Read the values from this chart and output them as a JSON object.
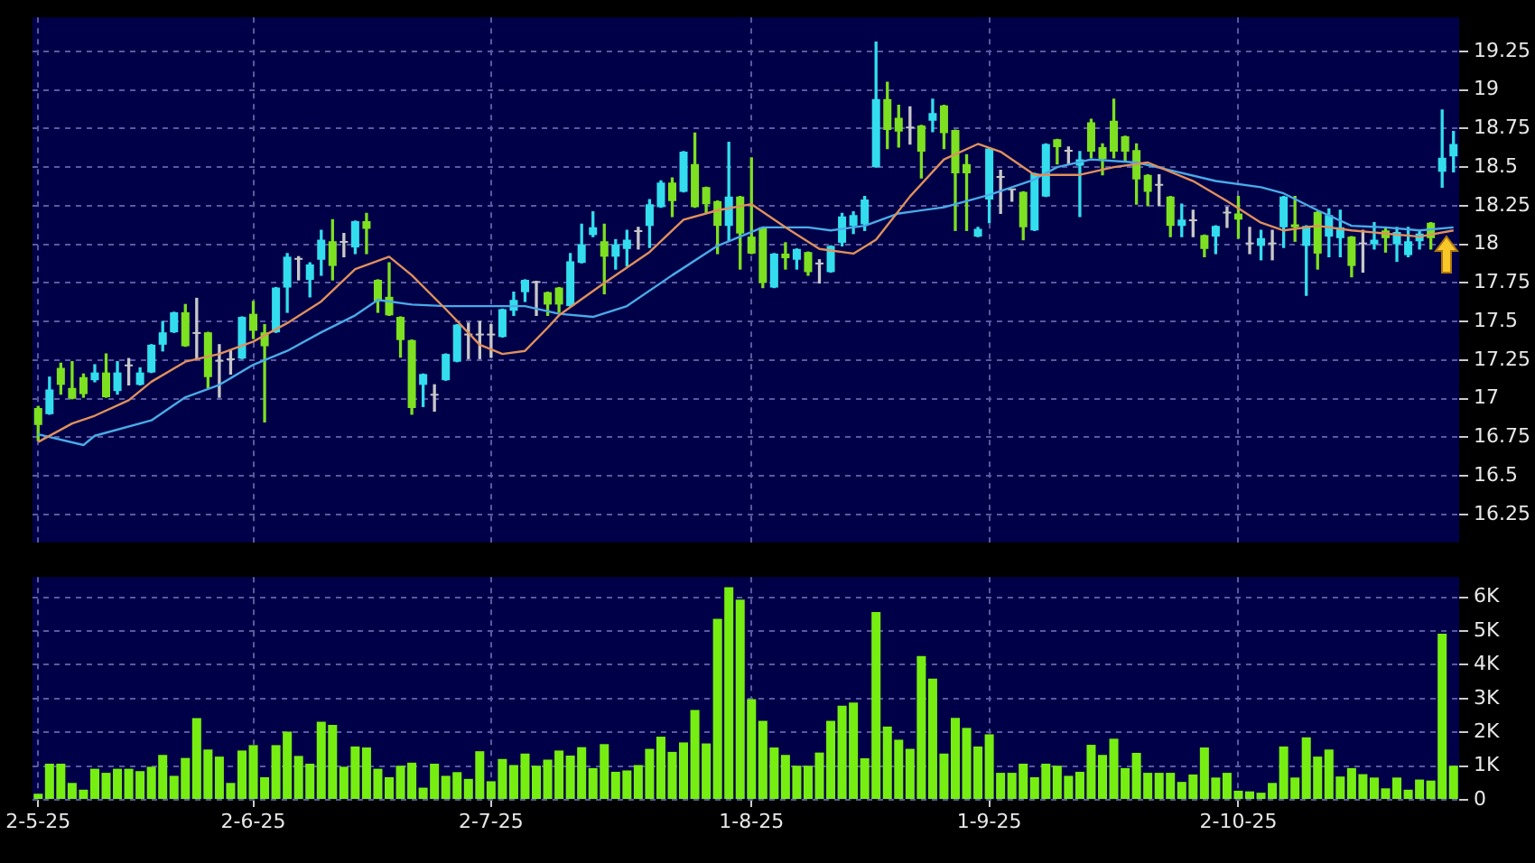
{
  "chart_data": [
    {
      "type": "candlestick",
      "categories": [
        null,
        null,
        null,
        null,
        null,
        null,
        null,
        null,
        null,
        null,
        null,
        null,
        null,
        null,
        null,
        null,
        null,
        null,
        null,
        null,
        null,
        null,
        null,
        null,
        null,
        null,
        null,
        null,
        null,
        null,
        null,
        null,
        null,
        null,
        null,
        null,
        null,
        null,
        null,
        null,
        null,
        null,
        null,
        null,
        null,
        null,
        null,
        null,
        null,
        null,
        null,
        null,
        null,
        null,
        null,
        null,
        null,
        null,
        null,
        null,
        null,
        null,
        null,
        null,
        null,
        null,
        null,
        null,
        null,
        null,
        null,
        null,
        null,
        null,
        null,
        null,
        null,
        null,
        null,
        null,
        null,
        null,
        null,
        null,
        null,
        null,
        null,
        null,
        null,
        null,
        null,
        null,
        null,
        null,
        null,
        null,
        null,
        null,
        null,
        null,
        null,
        null,
        null,
        null,
        null,
        null,
        null,
        null,
        null,
        null,
        null,
        null,
        null,
        null,
        null,
        null,
        null,
        null,
        null,
        null,
        null,
        null,
        null,
        null,
        null,
        null
      ],
      "ohlc": [
        [
          16.94,
          16.95,
          16.73,
          16.83
        ],
        [
          16.9,
          17.14,
          16.9,
          17.06
        ],
        [
          17.2,
          17.23,
          17.03,
          17.09
        ],
        [
          17.07,
          17.24,
          17.0,
          17.0
        ],
        [
          17.14,
          17.16,
          17.01,
          17.03
        ],
        [
          17.12,
          17.22,
          17.11,
          17.17
        ],
        [
          17.17,
          17.29,
          17.01,
          17.01
        ],
        [
          17.05,
          17.24,
          17.03,
          17.17
        ],
        [
          17.21,
          17.26,
          17.09,
          17.21
        ],
        [
          17.09,
          17.2,
          17.09,
          17.17
        ],
        [
          17.17,
          17.35,
          17.17,
          17.35
        ],
        [
          17.35,
          17.5,
          17.31,
          17.43
        ],
        [
          17.43,
          17.56,
          17.43,
          17.56
        ],
        [
          17.56,
          17.61,
          17.34,
          17.34
        ],
        [
          17.42,
          17.65,
          17.26,
          17.42
        ],
        [
          17.43,
          17.43,
          17.07,
          17.14
        ],
        [
          17.24,
          17.35,
          17.01,
          17.24
        ],
        [
          17.25,
          17.31,
          17.16,
          17.25
        ],
        [
          17.26,
          17.53,
          17.26,
          17.53
        ],
        [
          17.55,
          17.63,
          17.39,
          17.44
        ],
        [
          17.43,
          17.48,
          16.85,
          17.34
        ],
        [
          17.43,
          17.72,
          17.43,
          17.72
        ],
        [
          17.72,
          17.94,
          17.56,
          17.92
        ],
        [
          17.9,
          17.92,
          17.77,
          17.9
        ],
        [
          17.77,
          17.88,
          17.66,
          17.87
        ],
        [
          17.9,
          18.09,
          17.8,
          18.03
        ],
        [
          18.02,
          18.16,
          17.77,
          17.86
        ],
        [
          18.01,
          18.07,
          17.92,
          18.01
        ],
        [
          17.98,
          18.15,
          17.94,
          18.15
        ],
        [
          18.15,
          18.2,
          17.94,
          18.1
        ],
        [
          17.77,
          17.77,
          17.56,
          17.63
        ],
        [
          17.66,
          17.88,
          17.54,
          17.54
        ],
        [
          17.53,
          17.53,
          17.27,
          17.38
        ],
        [
          17.38,
          17.38,
          16.9,
          16.94
        ],
        [
          17.09,
          17.16,
          16.95,
          17.16
        ],
        [
          17.02,
          17.09,
          16.92,
          17.02
        ],
        [
          17.12,
          17.29,
          17.12,
          17.29
        ],
        [
          17.24,
          17.48,
          17.24,
          17.48
        ],
        [
          17.41,
          17.49,
          17.26,
          17.41
        ],
        [
          17.41,
          17.5,
          17.26,
          17.41
        ],
        [
          17.41,
          17.48,
          17.27,
          17.41
        ],
        [
          17.4,
          17.58,
          17.4,
          17.58
        ],
        [
          17.57,
          17.69,
          17.54,
          17.64
        ],
        [
          17.69,
          17.77,
          17.63,
          17.77
        ],
        [
          17.75,
          17.76,
          17.54,
          17.75
        ],
        [
          17.69,
          17.69,
          17.54,
          17.61
        ],
        [
          17.72,
          17.72,
          17.56,
          17.61
        ],
        [
          17.6,
          17.94,
          17.6,
          17.89
        ],
        [
          17.88,
          18.13,
          17.88,
          18.0
        ],
        [
          18.06,
          18.21,
          18.05,
          18.11
        ],
        [
          18.02,
          18.13,
          17.68,
          17.92
        ],
        [
          17.92,
          18.03,
          17.84,
          18.0
        ],
        [
          17.97,
          18.09,
          17.86,
          18.03
        ],
        [
          18.08,
          18.11,
          17.97,
          18.08
        ],
        [
          18.12,
          18.29,
          17.98,
          18.26
        ],
        [
          18.24,
          18.41,
          18.24,
          18.4
        ],
        [
          18.4,
          18.43,
          18.18,
          18.28
        ],
        [
          18.34,
          18.6,
          18.34,
          18.6
        ],
        [
          18.52,
          18.72,
          18.24,
          18.24
        ],
        [
          18.37,
          18.37,
          18.2,
          18.26
        ],
        [
          18.28,
          18.28,
          17.94,
          18.12
        ],
        [
          18.12,
          18.66,
          18.02,
          18.31
        ],
        [
          18.31,
          18.31,
          17.84,
          18.07
        ],
        [
          18.05,
          18.56,
          17.94,
          17.94
        ],
        [
          18.11,
          18.11,
          17.72,
          17.75
        ],
        [
          17.72,
          17.94,
          17.72,
          17.94
        ],
        [
          17.94,
          18.01,
          17.84,
          17.91
        ],
        [
          17.9,
          17.97,
          17.84,
          17.97
        ],
        [
          17.95,
          17.95,
          17.8,
          17.82
        ],
        [
          17.87,
          17.9,
          17.75,
          17.87
        ],
        [
          17.82,
          17.99,
          17.82,
          17.99
        ],
        [
          18.01,
          18.2,
          17.99,
          18.18
        ],
        [
          18.12,
          18.21,
          18.07,
          18.19
        ],
        [
          18.13,
          18.31,
          18.09,
          18.29
        ],
        [
          18.5,
          19.31,
          18.5,
          18.94
        ],
        [
          18.94,
          19.05,
          18.62,
          18.74
        ],
        [
          18.82,
          18.9,
          18.63,
          18.73
        ],
        [
          18.75,
          18.89,
          18.65,
          18.75
        ],
        [
          18.77,
          18.77,
          18.43,
          18.6
        ],
        [
          18.8,
          18.94,
          18.73,
          18.85
        ],
        [
          18.9,
          18.9,
          18.62,
          18.72
        ],
        [
          18.74,
          18.74,
          18.09,
          18.46
        ],
        [
          18.52,
          18.58,
          18.09,
          18.46
        ],
        [
          18.05,
          18.11,
          18.05,
          18.1
        ],
        [
          18.29,
          18.62,
          18.14,
          18.62
        ],
        [
          18.43,
          18.48,
          18.2,
          18.43
        ],
        [
          18.35,
          18.35,
          18.28,
          18.35
        ],
        [
          18.34,
          18.34,
          18.03,
          18.11
        ],
        [
          18.09,
          18.46,
          18.09,
          18.46
        ],
        [
          18.31,
          18.65,
          18.31,
          18.65
        ],
        [
          18.68,
          18.68,
          18.52,
          18.63
        ],
        [
          18.6,
          18.63,
          18.52,
          18.6
        ],
        [
          18.51,
          18.6,
          18.18,
          18.55
        ],
        [
          18.79,
          18.81,
          18.56,
          18.6
        ],
        [
          18.63,
          18.65,
          18.45,
          18.55
        ],
        [
          18.8,
          18.94,
          18.56,
          18.6
        ],
        [
          18.7,
          18.7,
          18.54,
          18.6
        ],
        [
          18.61,
          18.65,
          18.26,
          18.42
        ],
        [
          18.45,
          18.45,
          18.25,
          18.34
        ],
        [
          18.38,
          18.45,
          18.25,
          18.38
        ],
        [
          18.31,
          18.31,
          18.05,
          18.12
        ],
        [
          18.12,
          18.26,
          18.05,
          18.16
        ],
        [
          18.15,
          18.22,
          18.05,
          18.15
        ],
        [
          18.06,
          18.06,
          17.92,
          17.97
        ],
        [
          18.05,
          18.12,
          17.94,
          18.12
        ],
        [
          18.2,
          18.24,
          18.11,
          18.2
        ],
        [
          18.2,
          18.31,
          18.04,
          18.16
        ],
        [
          18.0,
          18.11,
          17.94,
          18.0
        ],
        [
          17.99,
          18.09,
          17.9,
          18.04
        ],
        [
          18.0,
          18.09,
          17.9,
          18.0
        ],
        [
          18.11,
          18.31,
          17.98,
          18.31
        ],
        [
          18.13,
          18.31,
          18.02,
          18.11
        ],
        [
          17.99,
          18.12,
          17.67,
          18.12
        ],
        [
          18.21,
          18.21,
          17.84,
          17.94
        ],
        [
          18.05,
          18.23,
          17.92,
          18.19
        ],
        [
          18.04,
          18.22,
          17.92,
          18.11
        ],
        [
          18.05,
          18.05,
          17.79,
          17.86
        ],
        [
          18.0,
          18.09,
          17.82,
          18.0
        ],
        [
          18.0,
          18.14,
          17.97,
          18.03
        ],
        [
          18.09,
          18.11,
          17.95,
          18.04
        ],
        [
          18.0,
          18.11,
          17.89,
          18.08
        ],
        [
          17.93,
          18.11,
          17.92,
          18.02
        ],
        [
          18.02,
          18.09,
          17.97,
          18.07
        ],
        [
          18.14,
          18.14,
          17.97,
          18.04
        ],
        [
          18.47,
          18.87,
          18.37,
          18.56
        ],
        [
          18.57,
          18.73,
          18.47,
          18.65
        ]
      ],
      "colors": [
        "#7de020",
        "#33ddee",
        "#7de020",
        "#7de020",
        "#7de020",
        "#33ddee",
        "#7de020",
        "#33ddee",
        "#c8c8c8",
        "#33ddee",
        "#33ddee",
        "#33ddee",
        "#33ddee",
        "#7de020",
        "#c8c8c8",
        "#7de020",
        "#c8c8c8",
        "#c8c8c8",
        "#33ddee",
        "#7de020",
        "#7de020",
        "#33ddee",
        "#33ddee",
        "#c8c8c8",
        "#33ddee",
        "#33ddee",
        "#7de020",
        "#c8c8c8",
        "#33ddee",
        "#7de020",
        "#7de020",
        "#7de020",
        "#7de020",
        "#7de020",
        "#33ddee",
        "#c8c8c8",
        "#33ddee",
        "#33ddee",
        "#c8c8c8",
        "#c8c8c8",
        "#c8c8c8",
        "#33ddee",
        "#33ddee",
        "#33ddee",
        "#c8c8c8",
        "#7de020",
        "#7de020",
        "#33ddee",
        "#33ddee",
        "#33ddee",
        "#7de020",
        "#33ddee",
        "#33ddee",
        "#c8c8c8",
        "#33ddee",
        "#33ddee",
        "#7de020",
        "#33ddee",
        "#7de020",
        "#7de020",
        "#7de020",
        "#33ddee",
        "#7de020",
        "#7de020",
        "#7de020",
        "#33ddee",
        "#7de020",
        "#33ddee",
        "#7de020",
        "#c8c8c8",
        "#33ddee",
        "#33ddee",
        "#33ddee",
        "#33ddee",
        "#33ddee",
        "#7de020",
        "#7de020",
        "#c8c8c8",
        "#7de020",
        "#33ddee",
        "#7de020",
        "#7de020",
        "#7de020",
        "#33ddee",
        "#33ddee",
        "#c8c8c8",
        "#c8c8c8",
        "#7de020",
        "#33ddee",
        "#33ddee",
        "#7de020",
        "#c8c8c8",
        "#33ddee",
        "#7de020",
        "#7de020",
        "#7de020",
        "#7de020",
        "#7de020",
        "#7de020",
        "#c8c8c8",
        "#7de020",
        "#33ddee",
        "#c8c8c8",
        "#7de020",
        "#33ddee",
        "#c8c8c8",
        "#7de020",
        "#c8c8c8",
        "#33ddee",
        "#c8c8c8",
        "#33ddee",
        "#7de020",
        "#33ddee",
        "#7de020",
        "#33ddee",
        "#33ddee",
        "#7de020",
        "#c8c8c8",
        "#33ddee",
        "#7de020",
        "#33ddee",
        "#33ddee",
        "#33ddee",
        "#7de020",
        "#33ddee",
        "#33ddee"
      ],
      "series": [
        {
          "type": "line",
          "color": "#e0905c",
          "values": [
            16.72,
            null,
            null,
            16.84,
            null,
            16.89,
            null,
            null,
            16.99,
            null,
            17.11,
            null,
            null,
            17.24,
            null,
            null,
            17.29,
            null,
            null,
            17.37,
            null,
            null,
            17.49,
            null,
            null,
            17.63,
            null,
            null,
            17.84,
            null,
            null,
            17.92,
            null,
            17.8,
            null,
            null,
            17.58,
            null,
            null,
            17.35,
            null,
            17.29,
            null,
            17.31,
            null,
            17.46,
            17.54,
            null,
            null,
            null,
            17.75,
            null,
            null,
            null,
            17.95,
            null,
            null,
            18.16,
            null,
            null,
            18.22,
            null,
            null,
            18.26,
            null,
            null,
            18.11,
            null,
            null,
            17.97,
            null,
            null,
            17.94,
            null,
            18.03,
            null,
            null,
            18.31,
            null,
            null,
            18.55,
            null,
            null,
            18.65,
            null,
            18.6,
            null,
            null,
            18.45,
            null,
            null,
            null,
            18.45,
            null,
            null,
            18.5,
            null,
            null,
            18.53,
            null,
            null,
            null,
            18.41,
            null,
            null,
            18.28,
            null,
            null,
            18.14,
            null,
            18.09,
            null,
            null,
            18.12,
            null,
            null,
            18.09,
            null,
            null,
            18.07,
            null,
            null,
            18.05,
            null,
            null,
            18.09
          ]
        },
        {
          "type": "line",
          "color": "#4aaae8",
          "values": [
            16.77,
            null,
            null,
            null,
            16.7,
            16.76,
            null,
            null,
            null,
            null,
            16.86,
            null,
            null,
            17.01,
            null,
            null,
            17.09,
            null,
            null,
            17.22,
            null,
            null,
            17.31,
            null,
            null,
            17.43,
            null,
            null,
            17.54,
            null,
            17.64,
            null,
            null,
            17.61,
            null,
            null,
            17.6,
            null,
            null,
            17.6,
            null,
            null,
            null,
            17.6,
            null,
            null,
            17.55,
            null,
            null,
            17.53,
            null,
            null,
            17.6,
            null,
            null,
            null,
            17.8,
            null,
            null,
            null,
            17.99,
            null,
            null,
            null,
            18.11,
            null,
            null,
            null,
            18.11,
            null,
            18.09,
            null,
            null,
            18.12,
            null,
            null,
            18.2,
            null,
            null,
            null,
            18.24,
            null,
            null,
            null,
            18.32,
            null,
            null,
            null,
            18.42,
            null,
            18.5,
            null,
            null,
            18.55,
            null,
            null,
            null,
            18.53,
            null,
            null,
            18.48,
            null,
            null,
            null,
            18.41,
            null,
            null,
            null,
            18.37,
            null,
            18.33,
            null,
            null,
            18.22,
            null,
            null,
            18.12,
            null,
            null,
            18.11,
            null,
            null,
            18.09,
            null,
            null,
            18.11
          ]
        }
      ],
      "ylim": [
        16.07,
        19.47
      ],
      "yticks": [
        16.25,
        16.5,
        16.75,
        17,
        17.25,
        17.5,
        17.75,
        18,
        18.25,
        18.5,
        18.75,
        19,
        19.25
      ],
      "grid": true,
      "tick_labels": "y"
    },
    {
      "type": "bar",
      "categories": [
        "2-5-25",
        null,
        null,
        null,
        null,
        null,
        null,
        null,
        null,
        null,
        null,
        null,
        null,
        null,
        null,
        null,
        null,
        null,
        null,
        "2-6-25",
        null,
        null,
        null,
        null,
        null,
        null,
        null,
        null,
        null,
        null,
        null,
        null,
        null,
        null,
        null,
        null,
        null,
        null,
        null,
        null,
        "2-7-25",
        null,
        null,
        null,
        null,
        null,
        null,
        null,
        null,
        null,
        null,
        null,
        null,
        null,
        null,
        null,
        null,
        null,
        null,
        null,
        null,
        null,
        null,
        "1-8-25",
        null,
        null,
        null,
        null,
        null,
        null,
        null,
        null,
        null,
        null,
        null,
        null,
        null,
        null,
        null,
        null,
        null,
        null,
        null,
        null,
        "1-9-25",
        null,
        null,
        null,
        null,
        null,
        null,
        null,
        null,
        null,
        null,
        null,
        null,
        null,
        null,
        null,
        null,
        null,
        null,
        null,
        null,
        null,
        "2-10-25",
        null,
        null,
        null,
        null,
        null,
        null,
        null,
        null,
        null,
        null,
        null,
        null,
        null,
        null,
        null,
        null,
        null,
        null,
        null
      ],
      "values": [
        0.18,
        1.07,
        1.07,
        0.5,
        0.3,
        0.92,
        0.8,
        0.92,
        0.92,
        0.85,
        0.98,
        1.33,
        0.71,
        1.24,
        2.42,
        1.49,
        1.28,
        0.5,
        1.46,
        1.62,
        0.67,
        1.62,
        2.02,
        1.3,
        1.07,
        2.31,
        2.22,
        0.98,
        1.58,
        1.55,
        0.92,
        0.67,
        1.01,
        1.1,
        0.36,
        1.07,
        0.71,
        0.82,
        0.62,
        1.44,
        0.55,
        1.21,
        1.03,
        1.37,
        1.01,
        1.19,
        1.46,
        1.31,
        1.56,
        0.94,
        1.65,
        0.83,
        0.87,
        1.03,
        1.51,
        1.87,
        1.42,
        1.7,
        2.66,
        1.67,
        5.36,
        6.3,
        5.93,
        2.98,
        2.34,
        1.55,
        1.33,
        1.01,
        1.01,
        1.4,
        2.34,
        2.79,
        2.88,
        1.23,
        5.56,
        2.17,
        1.78,
        1.51,
        4.26,
        3.59,
        1.37,
        2.43,
        2.13,
        1.58,
        1.94,
        0.8,
        0.8,
        1.07,
        0.67,
        1.07,
        1.01,
        0.71,
        0.83,
        1.63,
        1.33,
        1.81,
        0.94,
        1.39,
        0.8,
        0.8,
        0.8,
        0.53,
        0.75,
        1.55,
        0.66,
        0.8,
        0.27,
        0.25,
        0.21,
        0.5,
        1.58,
        0.66,
        1.85,
        1.28,
        1.49,
        0.69,
        0.94,
        0.76,
        0.66,
        0.34,
        0.66,
        0.3,
        0.6,
        0.57,
        4.92,
        1.01
      ],
      "color": "#77ee11",
      "ylim": [
        0,
        6.6
      ],
      "yticks": [
        0,
        {
          "value": 1,
          "label": "1K"
        },
        {
          "value": 2,
          "label": "2K"
        },
        {
          "value": 3,
          "label": "3K"
        },
        {
          "value": 4,
          "label": "4K"
        },
        {
          "value": 5,
          "label": "5K"
        },
        {
          "value": 6,
          "label": "6K"
        }
      ],
      "grid": true
    }
  ]
}
